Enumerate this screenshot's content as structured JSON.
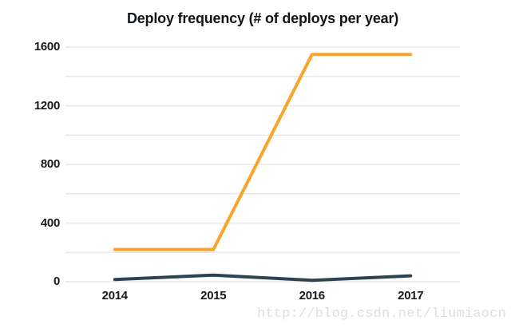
{
  "chart_data": {
    "type": "line",
    "title": "Deploy frequency (# of deploys per year)",
    "categories": [
      "2014",
      "2015",
      "2016",
      "2017"
    ],
    "series": [
      {
        "name": "orange-line",
        "color": "#F9A42B",
        "values": [
          220,
          220,
          1550,
          1550
        ]
      },
      {
        "name": "dark-slate-line",
        "color": "#2F4250",
        "values": [
          15,
          45,
          10,
          40
        ]
      }
    ],
    "xlabel": "",
    "ylabel": "",
    "ylim": [
      0,
      1600
    ],
    "ytick_labels": [
      0,
      400,
      800,
      1200,
      1600
    ],
    "gridline_step": 200,
    "grid": true,
    "legend_position": "none"
  },
  "watermark": {
    "text": "http://blog.csdn.net/liumiaocn"
  },
  "colors": {
    "background": "#FFFFFF",
    "gridline": "#E7E8E9",
    "tick_text": "#17191C",
    "title_text": "#121518",
    "watermark_text": "#DEDEDA"
  }
}
